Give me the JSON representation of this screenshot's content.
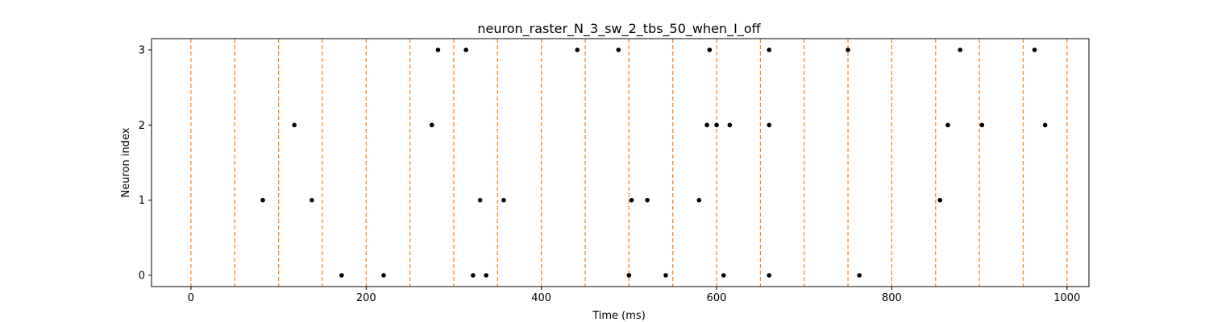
{
  "chart_data": {
    "type": "scatter",
    "title": "neuron_raster_N_3_sw_2_tbs_50_when_I_off",
    "xlabel": "Time (ms)",
    "ylabel": "Neuron index",
    "xlim": [
      -45,
      1025
    ],
    "ylim": [
      -0.15,
      3.15
    ],
    "xticks": [
      0,
      200,
      400,
      600,
      800,
      1000
    ],
    "yticks": [
      0,
      1,
      2,
      3
    ],
    "grid": false,
    "marker_color": "#000000",
    "line_color": "#ff7f0e",
    "vlines": [
      0,
      50,
      100,
      150,
      200,
      250,
      300,
      350,
      400,
      450,
      500,
      550,
      600,
      650,
      700,
      750,
      800,
      850,
      900,
      950,
      1000
    ],
    "series": [
      {
        "neuron": 0,
        "times": [
          172,
          220,
          322,
          337,
          500,
          542,
          608,
          660,
          763
        ]
      },
      {
        "neuron": 1,
        "times": [
          82,
          138,
          330,
          357,
          503,
          521,
          580,
          855
        ]
      },
      {
        "neuron": 2,
        "times": [
          118,
          275,
          589,
          600,
          615,
          660,
          864,
          903,
          975
        ]
      },
      {
        "neuron": 3,
        "times": [
          282,
          314,
          441,
          488,
          592,
          660,
          750,
          878,
          963
        ]
      }
    ]
  }
}
